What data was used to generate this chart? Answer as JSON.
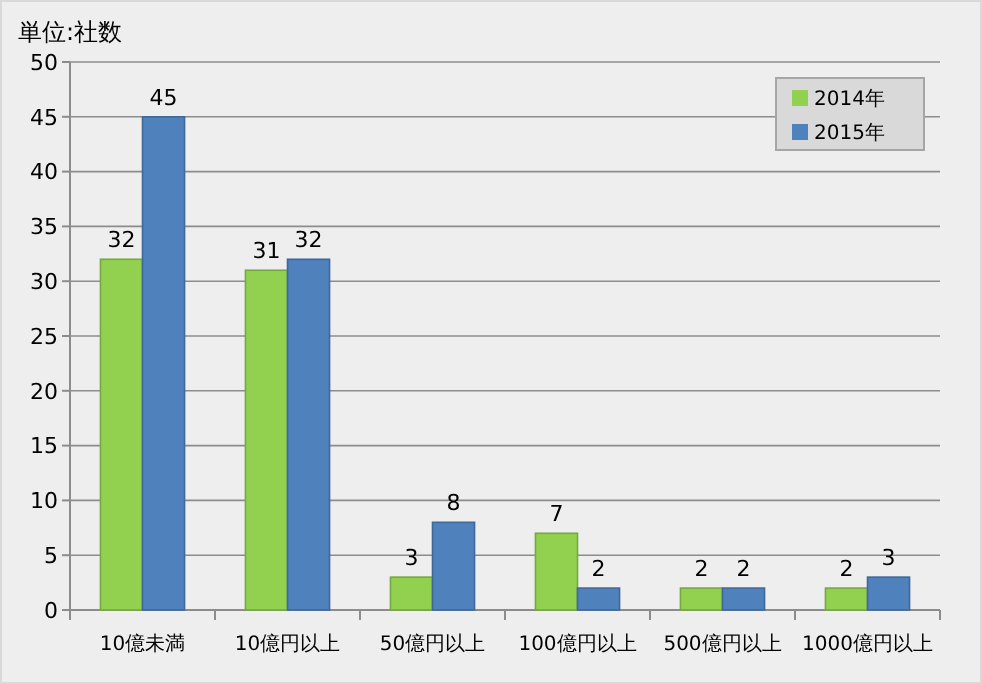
{
  "chart_data": {
    "type": "bar",
    "ylabel": "単位:社数",
    "categories": [
      "10億未満",
      "10億円以上",
      "50億円以上",
      "100億円以上",
      "500億円以上",
      "1000億円以上"
    ],
    "series": [
      {
        "name": "2014年",
        "color": "#92d050",
        "values": [
          32,
          31,
          3,
          7,
          2,
          2
        ]
      },
      {
        "name": "2015年",
        "color": "#4f81bd",
        "values": [
          45,
          32,
          8,
          2,
          2,
          3
        ]
      }
    ],
    "ylim": [
      0,
      50
    ],
    "yticks": [
      0,
      5,
      10,
      15,
      20,
      25,
      30,
      35,
      40,
      45,
      50
    ],
    "grid": "y",
    "legend": "top right",
    "data_labels": true
  }
}
